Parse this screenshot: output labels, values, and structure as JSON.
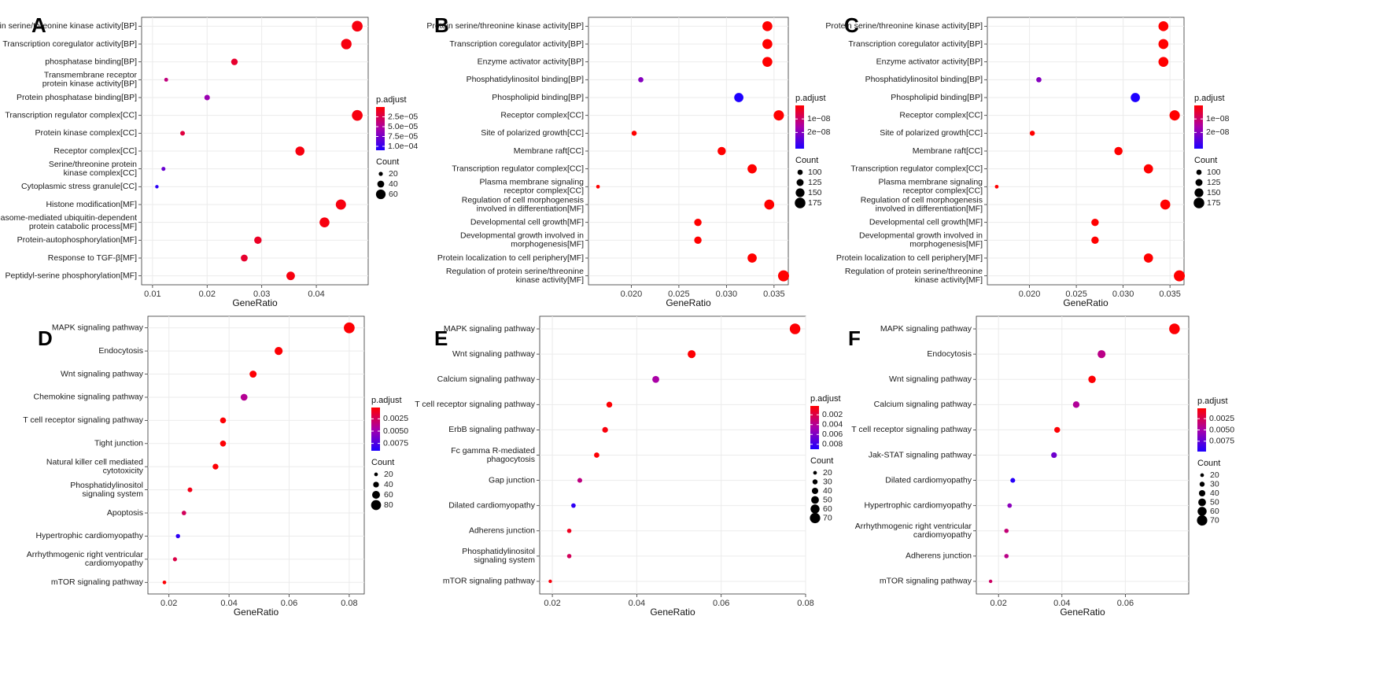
{
  "chart_data": [
    {
      "panel": "A",
      "type": "scatter",
      "xlabel": "GeneRatio",
      "xlim": [
        0.008,
        0.0495
      ],
      "xticks": [
        0.01,
        0.02,
        0.03,
        0.04
      ],
      "xtick_labels": [
        "0.01",
        "0.02",
        "0.03",
        "0.04"
      ],
      "categories": [
        "Protein serine/threonine kinase activity[BP]",
        "Transcription coregulator activity[BP]",
        "phosphatase binding[BP]",
        "Transmembrane receptor\nprotein kinase activity[BP]",
        "Protein phosphatase binding[BP]",
        "Transcription regulator complex[CC]",
        "Protein kinase complex[CC]",
        "Receptor complex[CC]",
        "Serine/threonine protein\nkinase complex[CC]",
        "Cytoplasmic stress granule[CC]",
        "Histone modification[MF]",
        "Proteasome-mediated ubiquitin-dependent\nprotein catabolic process[MF]",
        "Protein-autophosphorylation[MF]",
        "Response to TGF-β[MF]",
        "Peptidyl-serine phosphorylation[MF]"
      ],
      "x": [
        0.0475,
        0.0455,
        0.025,
        0.0125,
        0.02,
        0.0475,
        0.0155,
        0.037,
        0.012,
        0.0108,
        0.0445,
        0.0415,
        0.0293,
        0.0268,
        0.0353
      ],
      "count": [
        68,
        66,
        38,
        18,
        30,
        68,
        24,
        56,
        19,
        15,
        64,
        62,
        44,
        40,
        52
      ],
      "padj": [
        5e-06,
        5e-06,
        1.5e-05,
        4e-05,
        6e-05,
        5e-06,
        2e-05,
        5e-06,
        8e-05,
        0.000105,
        5e-06,
        5e-06,
        1.2e-05,
        1.5e-05,
        5e-06
      ],
      "color_range": [
        0.00011,
        0
      ],
      "size_range": [
        15,
        70
      ],
      "legend_color": {
        "title": "p.adjust",
        "ticks": [
          2.5e-05,
          5e-05,
          7.5e-05,
          0.0001
        ],
        "labels": [
          "2.5e−05",
          "5.0e−05",
          "7.5e−05",
          "1.0e−04"
        ]
      },
      "legend_size": {
        "title": "Count",
        "values": [
          20,
          40,
          60
        ],
        "labels": [
          "20",
          "40",
          "60"
        ]
      }
    },
    {
      "panel": "B",
      "type": "scatter",
      "xlabel": "GeneRatio",
      "xlim": [
        0.0155,
        0.0365
      ],
      "xticks": [
        0.02,
        0.025,
        0.03,
        0.035
      ],
      "xtick_labels": [
        "0.020",
        "0.025",
        "0.030",
        "0.035"
      ],
      "categories": [
        "Protein serine/threonine kinase activity[BP]",
        "Transcription coregulator activity[BP]",
        "Enzyme activator activity[BP]",
        "Phosphatidylinositol binding[BP]",
        "Phospholipid binding[BP]",
        "Receptor complex[CC]",
        "Site of polarized growth[CC]",
        "Membrane raft[CC]",
        "Transcription regulator complex[CC]",
        "Plasma membrane signaling\nreceptor complex[CC]",
        "Regulation of cell morphogenesis\ninvolved in differentiation[MF]",
        "Developmental cell growth[MF]",
        "Developmental growth involved in\nmorphogenesis[MF]",
        "Protein localization to cell periphery[MF]",
        "Regulation of protein serine/threonine\nkinase activity[MF]"
      ],
      "x": [
        0.0343,
        0.0343,
        0.0343,
        0.021,
        0.0313,
        0.0355,
        0.0203,
        0.0295,
        0.0327,
        0.0165,
        0.0345,
        0.027,
        0.027,
        0.0327,
        0.036
      ],
      "count": [
        165,
        165,
        165,
        100,
        155,
        170,
        98,
        142,
        155,
        78,
        165,
        130,
        130,
        155,
        180
      ],
      "padj": [
        0,
        0,
        0,
        2e-08,
        3.2e-08,
        0,
        0,
        0,
        0,
        0,
        0,
        0,
        0,
        0,
        0
      ],
      "color_range": [
        3.2e-08,
        0
      ],
      "size_range": [
        75,
        180
      ],
      "legend_color": {
        "title": "p.adjust",
        "ticks": [
          1e-08,
          2e-08
        ],
        "labels": [
          "1e−08",
          "2e−08"
        ]
      },
      "legend_size": {
        "title": "Count",
        "values": [
          100,
          125,
          150,
          175
        ],
        "labels": [
          "100",
          "125",
          "150",
          "175"
        ]
      }
    },
    {
      "panel": "C",
      "type": "scatter",
      "xlabel": "GeneRatio",
      "xlim": [
        0.0155,
        0.0365
      ],
      "xticks": [
        0.02,
        0.025,
        0.03,
        0.035
      ],
      "xtick_labels": [
        "0.020",
        "0.025",
        "0.030",
        "0.035"
      ],
      "categories": [
        "Protein serine/threonine kinase activity[BP]",
        "Transcription coregulator activity[BP]",
        "Enzyme activator activity[BP]",
        "Phosphatidylinositol binding[BP]",
        "Phospholipid binding[BP]",
        "Receptor complex[CC]",
        "Site of polarized growth[CC]",
        "Membrane raft[CC]",
        "Transcription regulator complex[CC]",
        "Plasma membrane signaling\nreceptor complex[CC]",
        "Regulation of cell morphogenesis\ninvolved in differentiation[MF]",
        "Developmental cell growth[MF]",
        "Developmental growth involved in\nmorphogenesis[MF]",
        "Protein localization to cell periphery[MF]",
        "Regulation of protein serine/threonine\nkinase activity[MF]"
      ],
      "x": [
        0.0343,
        0.0343,
        0.0343,
        0.021,
        0.0313,
        0.0355,
        0.0203,
        0.0295,
        0.0327,
        0.0165,
        0.0345,
        0.027,
        0.027,
        0.0327,
        0.036
      ],
      "count": [
        165,
        165,
        165,
        100,
        155,
        170,
        98,
        142,
        155,
        78,
        165,
        130,
        130,
        155,
        180
      ],
      "padj": [
        0,
        0,
        0,
        2e-08,
        3.2e-08,
        0,
        0,
        0,
        0,
        0,
        0,
        0,
        0,
        0,
        0
      ],
      "color_range": [
        3.2e-08,
        0
      ],
      "size_range": [
        75,
        180
      ],
      "legend_color": {
        "title": "p.adjust",
        "ticks": [
          1e-08,
          2e-08
        ],
        "labels": [
          "1e−08",
          "2e−08"
        ]
      },
      "legend_size": {
        "title": "Count",
        "values": [
          100,
          125,
          150,
          175
        ],
        "labels": [
          "100",
          "125",
          "150",
          "175"
        ]
      }
    },
    {
      "panel": "D",
      "type": "scatter",
      "xlabel": "GeneRatio",
      "xlim": [
        0.013,
        0.085
      ],
      "xticks": [
        0.02,
        0.04,
        0.06,
        0.08
      ],
      "xtick_labels": [
        "0.02",
        "0.04",
        "0.06",
        "0.08"
      ],
      "categories": [
        "MAPK signaling pathway",
        "Endocytosis",
        "Wnt signaling pathway",
        "Chemokine signaling pathway",
        "T cell receptor signaling pathway",
        "Tight junction",
        "Natural killer cell mediated\ncytotoxicity",
        "Phosphatidylinositol\nsignaling system",
        "Apoptosis",
        "Hypertrophic cardiomyopathy",
        "Arrhythmogenic right ventricular\ncardiomyopathy",
        "mTOR signaling pathway"
      ],
      "x": [
        0.08,
        0.0565,
        0.048,
        0.045,
        0.038,
        0.038,
        0.0355,
        0.027,
        0.025,
        0.023,
        0.022,
        0.0185
      ],
      "count": [
        88,
        62,
        52,
        50,
        42,
        42,
        40,
        30,
        28,
        26,
        24,
        20
      ],
      "padj": [
        0.0003,
        0.0003,
        0.0003,
        0.004,
        0.0003,
        0.0003,
        0.0003,
        0.0008,
        0.0025,
        0.0085,
        0.002,
        0.0003
      ],
      "color_range": [
        0.009,
        0.0002
      ],
      "size_range": [
        18,
        90
      ],
      "legend_color": {
        "title": "p.adjust",
        "ticks": [
          0.0025,
          0.005,
          0.0075
        ],
        "labels": [
          "0.0025",
          "0.0050",
          "0.0075"
        ]
      },
      "legend_size": {
        "title": "Count",
        "values": [
          20,
          40,
          60,
          80
        ],
        "labels": [
          "20",
          "40",
          "60",
          "80"
        ]
      }
    },
    {
      "panel": "E",
      "type": "scatter",
      "xlabel": "GeneRatio",
      "xlim": [
        0.017,
        0.08
      ],
      "xticks": [
        0.02,
        0.04,
        0.06,
        0.08
      ],
      "xtick_labels": [
        "0.02",
        "0.04",
        "0.06",
        "0.08"
      ],
      "categories": [
        "MAPK signaling pathway",
        "Wnt signaling pathway",
        "Calcium signaling pathway",
        "T cell receptor signaling pathway",
        "ErbB signaling pathway",
        "Fc gamma R-mediated\nphagocytosis",
        "Gap junction",
        "Dilated cardiomyopathy",
        "Adherens junction",
        "Phosphatidylinositol\nsignaling system",
        "mTOR signaling pathway"
      ],
      "x": [
        0.0775,
        0.053,
        0.0445,
        0.0335,
        0.0325,
        0.0305,
        0.0265,
        0.025,
        0.024,
        0.024,
        0.0195
      ],
      "count": [
        72,
        52,
        44,
        36,
        35,
        32,
        28,
        26,
        25,
        25,
        18
      ],
      "padj": [
        0.0003,
        0.0003,
        0.0045,
        0.0003,
        0.0005,
        0.0003,
        0.0035,
        0.0085,
        0.001,
        0.0025,
        0.0005
      ],
      "color_range": [
        0.009,
        0.0002
      ],
      "size_range": [
        18,
        75
      ],
      "legend_color": {
        "title": "p.adjust",
        "ticks": [
          0.002,
          0.004,
          0.006,
          0.008
        ],
        "labels": [
          "0.002",
          "0.004",
          "0.006",
          "0.008"
        ]
      },
      "legend_size": {
        "title": "Count",
        "values": [
          20,
          30,
          40,
          50,
          60,
          70
        ],
        "labels": [
          "20",
          "30",
          "40",
          "50",
          "60",
          "70"
        ]
      }
    },
    {
      "panel": "F",
      "type": "scatter",
      "xlabel": "GeneRatio",
      "xlim": [
        0.013,
        0.08
      ],
      "xticks": [
        0.02,
        0.04,
        0.06
      ],
      "xtick_labels": [
        "0.02",
        "0.04",
        "0.06"
      ],
      "categories": [
        "MAPK signaling pathway",
        "Endocytosis",
        "Wnt signaling pathway",
        "Calcium signaling pathway",
        "T cell receptor signaling pathway",
        "Jak-STAT signaling pathway",
        "Dilated cardiomyopathy",
        "Hypertrophic cardiomyopathy",
        "Arrhythmogenic right ventricular\ncardiomyopathy",
        "Adherens junction",
        "mTOR signaling pathway"
      ],
      "x": [
        0.0755,
        0.0525,
        0.0495,
        0.0445,
        0.0385,
        0.0375,
        0.0245,
        0.0235,
        0.0225,
        0.0225,
        0.0175
      ],
      "count": [
        72,
        52,
        48,
        42,
        36,
        35,
        28,
        26,
        25,
        25,
        18
      ],
      "padj": [
        0.0003,
        0.004,
        0.0003,
        0.0045,
        0.0003,
        0.007,
        0.0095,
        0.006,
        0.0035,
        0.004,
        0.003
      ],
      "color_range": [
        0.0098,
        0.0002
      ],
      "size_range": [
        18,
        75
      ],
      "legend_color": {
        "title": "p.adjust",
        "ticks": [
          0.0025,
          0.005,
          0.0075
        ],
        "labels": [
          "0.0025",
          "0.0050",
          "0.0075"
        ]
      },
      "legend_size": {
        "title": "Count",
        "values": [
          20,
          30,
          40,
          50,
          60,
          70
        ],
        "labels": [
          "20",
          "30",
          "40",
          "50",
          "60",
          "70"
        ]
      }
    }
  ]
}
